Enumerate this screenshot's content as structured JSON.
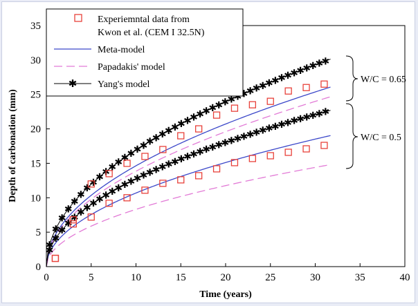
{
  "chart_data": {
    "type": "line",
    "xlabel": "Time (years)",
    "ylabel": "Depth of carbonation (mm)",
    "xlim": [
      0,
      40
    ],
    "ylim": [
      0,
      35
    ],
    "xticks": [
      0,
      5,
      10,
      15,
      20,
      25,
      30,
      35,
      40
    ],
    "yticks": [
      0,
      5,
      10,
      15,
      20,
      25,
      30,
      35
    ],
    "grid": false,
    "legend": {
      "placement": "top-left",
      "entries": [
        {
          "label_lines": [
            "Experiemntal data from",
            "Kwon et al. (CEM I 32.5N)"
          ],
          "marker": "square",
          "color": "#e8413a"
        },
        {
          "label_lines": [
            "Meta-model"
          ],
          "style": "solid",
          "color": "#3b47c9"
        },
        {
          "label_lines": [
            "Papadakis' model"
          ],
          "style": "dashed",
          "color": "#e27ad6"
        },
        {
          "label_lines": [
            "Yang's model"
          ],
          "style": "solid-star",
          "color": "#000000"
        }
      ]
    },
    "annotations": [
      {
        "text": "W/C = 0.65",
        "bracket_y": [
          25,
          31
        ]
      },
      {
        "text": "W/C = 0.5",
        "bracket_y": [
          14.5,
          23.5
        ]
      }
    ],
    "series": [
      {
        "group": "W/C = 0.65",
        "model": "experimental",
        "color": "#e8413a",
        "x": [
          1,
          3,
          5,
          7,
          9,
          11,
          13,
          15,
          17,
          19,
          21,
          23,
          25,
          27,
          29,
          31
        ],
        "y": [
          1.2,
          6.8,
          12,
          13.5,
          15,
          16,
          17,
          19,
          20,
          22,
          23,
          23.5,
          24,
          25.5,
          26,
          26.5
        ]
      },
      {
        "group": "W/C = 0.5",
        "model": "experimental",
        "color": "#e8413a",
        "x": [
          1,
          3,
          5,
          7,
          9,
          11,
          13,
          15,
          17,
          19,
          21,
          23,
          25,
          27,
          29,
          31
        ],
        "y": [
          1.2,
          6.2,
          7.2,
          9.2,
          10,
          11.1,
          12.1,
          12.6,
          13.2,
          14.2,
          15.1,
          15.7,
          16.1,
          16.6,
          17.1,
          17.6
        ]
      },
      {
        "group": "W/C = 0.65",
        "model": "meta",
        "color": "#3b47c9",
        "formula_k": 4.63,
        "xmax": 31.7
      },
      {
        "group": "W/C = 0.5",
        "model": "meta",
        "color": "#3b47c9",
        "formula_k": 3.38,
        "xmax": 31.7
      },
      {
        "group": "W/C = 0.65",
        "model": "papadakis",
        "color": "#e27ad6",
        "formula_k": 4.38,
        "xmax": 31.7
      },
      {
        "group": "W/C = 0.5",
        "model": "papadakis",
        "color": "#e27ad6",
        "formula_k": 2.63,
        "xmax": 31.7
      },
      {
        "group": "W/C = 0.65",
        "model": "yang",
        "color": "#000000",
        "formula_k": 5.35,
        "xmax": 31.7
      },
      {
        "group": "W/C = 0.5",
        "model": "yang",
        "color": "#000000",
        "formula_k": 4.03,
        "xmax": 31.7
      }
    ]
  }
}
